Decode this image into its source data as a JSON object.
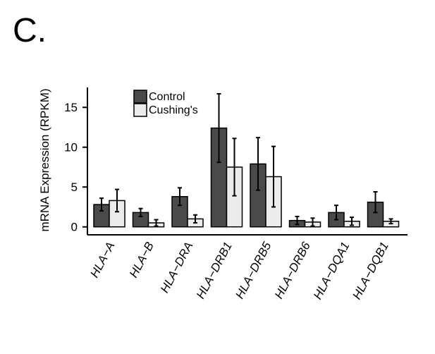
{
  "panel_label": "C.",
  "colors": {
    "control": "#4a4a4a",
    "cushings": "#ececec",
    "stroke": "#000000"
  },
  "chart_data": {
    "type": "bar",
    "ylabel": "mRNA Expression (RPKM)",
    "xlabel": "",
    "ylim": [
      -1,
      17.5
    ],
    "yticks": [
      0,
      5,
      10,
      15
    ],
    "legend_placement": "top-left",
    "grid": false,
    "categories": [
      "HLA−A",
      "HLA−B",
      "HLA−DRA",
      "HLA−DRB1",
      "HLA−DRB5",
      "HLA−DRB6",
      "HLA−DQA1",
      "HLA−DQB1"
    ],
    "series": [
      {
        "name": "Control",
        "values": [
          2.8,
          1.8,
          3.8,
          12.4,
          7.9,
          0.8,
          1.8,
          3.1
        ],
        "error": [
          0.8,
          0.5,
          1.1,
          4.3,
          3.3,
          0.5,
          0.9,
          1.3
        ]
      },
      {
        "name": "Cushing's",
        "values": [
          3.3,
          0.5,
          1.0,
          7.5,
          6.3,
          0.6,
          0.7,
          0.7
        ],
        "error": [
          1.4,
          0.4,
          0.5,
          3.6,
          3.8,
          0.5,
          0.5,
          0.3
        ]
      }
    ]
  }
}
